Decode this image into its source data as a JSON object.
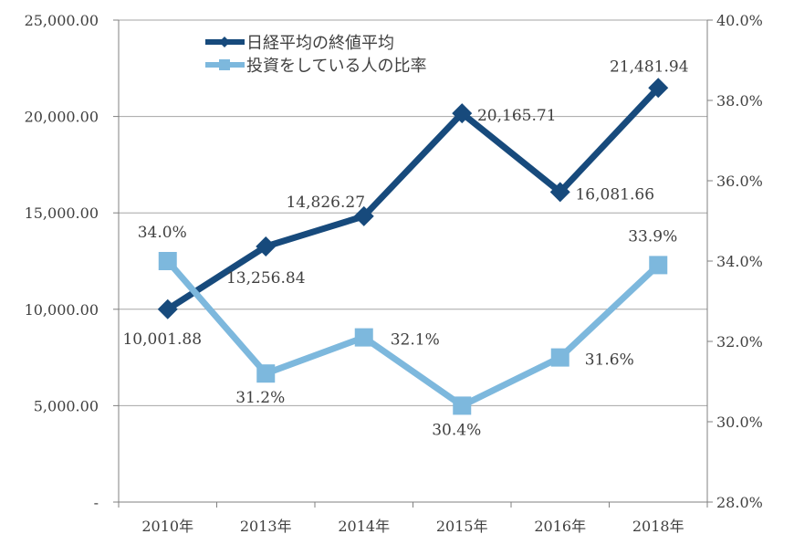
{
  "chart_data": {
    "type": "line",
    "categories": [
      "2010年",
      "2013年",
      "2014年",
      "2015年",
      "2016年",
      "2018年"
    ],
    "series": [
      {
        "name": "日経平均の終値平均",
        "axis": "left",
        "color": "#174a7c",
        "marker": "diamond",
        "values": [
          10001.88,
          13256.84,
          14826.27,
          20165.71,
          16081.66,
          21481.94
        ],
        "labels": [
          "10,001.88",
          "13,256.84",
          "14,826.27",
          "20,165.71",
          "16,081.66",
          "21,481.94"
        ]
      },
      {
        "name": "投資をしている人の比率",
        "axis": "right",
        "color": "#7db8dd",
        "marker": "square",
        "values": [
          34.0,
          31.2,
          32.1,
          30.4,
          31.6,
          33.9
        ],
        "labels": [
          "34.0%",
          "31.2%",
          "32.1%",
          "30.4%",
          "31.6%",
          "33.9%"
        ]
      }
    ],
    "left_axis": {
      "ylim": [
        0,
        25000
      ],
      "ticks": [
        0,
        5000,
        10000,
        15000,
        20000,
        25000
      ],
      "tick_labels": [
        "-",
        "5,000.00",
        "10,000.00",
        "15,000.00",
        "20,000.00",
        "25,000.00"
      ]
    },
    "right_axis": {
      "ylim": [
        28,
        40
      ],
      "ticks": [
        28,
        30,
        32,
        34,
        36,
        38,
        40
      ],
      "tick_labels": [
        "28.0%",
        "30.0%",
        "32.0%",
        "34.0%",
        "36.0%",
        "38.0%",
        "40.0%"
      ]
    },
    "grid": true,
    "legend": "top-left"
  }
}
